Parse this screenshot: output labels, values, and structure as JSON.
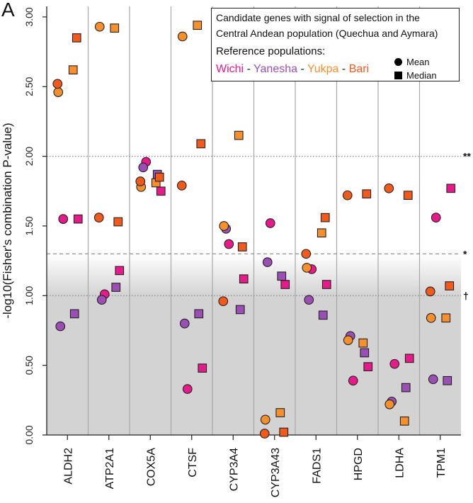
{
  "panel_label": "A",
  "legend": {
    "title_line1": "Candidate genes with signal of selection in the",
    "title_line2": "Central Andean population (Quechua and Aymara)",
    "reference_label": "Reference populations:",
    "separator": "-",
    "populations": [
      {
        "name": "Wichi",
        "color": "#E8198B"
      },
      {
        "name": "Yanesha",
        "color": "#9B4FB5"
      },
      {
        "name": "Yukpa",
        "color": "#F7902B"
      },
      {
        "name": "Bari",
        "color": "#F25A1C"
      }
    ],
    "mean_label": "Mean",
    "median_label": "Median"
  },
  "chart_data": {
    "type": "scatter",
    "ylabel": "-log10(Fisher's combination P-value)",
    "xlabel": "",
    "ylim": [
      0,
      3.05
    ],
    "yticks": [
      0,
      0.5,
      1.0,
      1.5,
      2.0,
      2.5,
      3.0
    ],
    "ytick_labels": [
      "0.00",
      "0.50",
      "1.00",
      "1.50",
      "2.00",
      "2.50",
      "3.00"
    ],
    "categories": [
      "ALDH2",
      "ATP2A1",
      "COX5A",
      "CTSF",
      "CYP3A4",
      "CYP3A43",
      "FADS1",
      "HPGD",
      "LDHA",
      "TPM1"
    ],
    "thresholds": [
      {
        "value": 2.0,
        "label": "**",
        "style": "dotted"
      },
      {
        "value": 1.3,
        "label": "*",
        "style": "dashed"
      },
      {
        "value": 1.0,
        "label": "†",
        "style": "dotted"
      }
    ],
    "shading": {
      "below": 1.0,
      "fade_to": 1.3,
      "color": "#d3d3d3"
    },
    "series": [
      {
        "name": "Wichi",
        "stat": "Mean",
        "values": [
          1.55,
          1.01,
          1.96,
          0.33,
          1.37,
          1.52,
          1.19,
          0.39,
          0.51,
          1.56
        ]
      },
      {
        "name": "Wichi",
        "stat": "Median",
        "values": [
          1.55,
          1.18,
          1.75,
          0.48,
          1.12,
          1.08,
          1.08,
          0.49,
          0.55,
          1.77
        ]
      },
      {
        "name": "Yanesha",
        "stat": "Mean",
        "values": [
          0.78,
          0.97,
          1.92,
          0.8,
          1.48,
          1.24,
          0.97,
          0.71,
          0.24,
          0.4
        ]
      },
      {
        "name": "Yanesha",
        "stat": "Median",
        "values": [
          0.87,
          1.06,
          1.87,
          0.87,
          0.9,
          1.14,
          0.86,
          0.59,
          0.34,
          0.39
        ]
      },
      {
        "name": "Yukpa",
        "stat": "Mean",
        "values": [
          2.46,
          2.93,
          1.78,
          2.86,
          1.5,
          0.11,
          1.2,
          0.68,
          0.22,
          0.84
        ]
      },
      {
        "name": "Yukpa",
        "stat": "Median",
        "values": [
          2.62,
          2.92,
          1.81,
          2.94,
          2.15,
          0.16,
          1.45,
          0.66,
          0.1,
          0.84
        ]
      },
      {
        "name": "Bari",
        "stat": "Mean",
        "values": [
          2.52,
          1.56,
          1.82,
          1.79,
          0.96,
          0.01,
          1.3,
          1.72,
          1.77,
          1.03
        ]
      },
      {
        "name": "Bari",
        "stat": "Median",
        "values": [
          2.85,
          1.53,
          1.85,
          2.09,
          1.35,
          0.02,
          1.56,
          1.73,
          1.72,
          1.07
        ]
      }
    ]
  }
}
